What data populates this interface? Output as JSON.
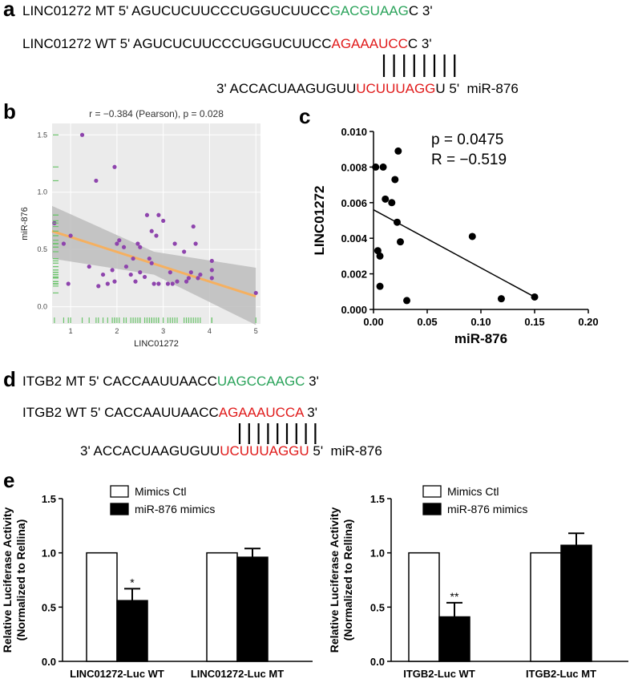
{
  "colors": {
    "green": "#2aa35a",
    "red": "#e01a1a",
    "purple": "#8e44ad",
    "orange": "#f5b060",
    "rug": "#6cc46c",
    "band": "#bdbdbd"
  },
  "panels": {
    "a": {
      "letter": "a",
      "mt": {
        "prefix": "LINC01272 MT 5' AGUCUCUUCCCUGGUCUUCC",
        "site": "GACGUAAG",
        "suffix": "C 3'"
      },
      "wt": {
        "prefix": "LINC01272 WT 5' AGUCUCUUCCCUGGUCUUCC",
        "site": "AGAAAUCC",
        "suffix": "C 3'"
      },
      "mir": {
        "prefix": "3' ACCACUAAGUGUU",
        "site": "UCUUUAGG",
        "suffix": "U 5'  miR-876"
      }
    },
    "b": {
      "letter": "b"
    },
    "c": {
      "letter": "c"
    },
    "d": {
      "letter": "d",
      "mt": {
        "prefix": "ITGB2 MT 5' CACCAAUUAACC",
        "site": "UAGCCAAGC",
        "suffix": " 3'"
      },
      "wt": {
        "prefix": "ITGB2 WT 5' CACCAAUUAACC",
        "site": "AGAAAUCCA",
        "suffix": " 3'"
      },
      "mir": {
        "prefix": "3' ACCACUAAGUGUU",
        "site": "UCUUUAGGU",
        "suffix": " 5'  miR-876"
      }
    },
    "e": {
      "letter": "e"
    }
  },
  "chart_data": [
    {
      "type": "scatter",
      "panel": "b",
      "title": "r = −0.384 (Pearson), p = 0.028",
      "xlabel": "LINC01272",
      "ylabel": "miR-876",
      "xlim": [
        0.6,
        5.1
      ],
      "ylim": [
        -0.15,
        1.6
      ],
      "xticks": [
        "1",
        "2",
        "3",
        "4",
        "5"
      ],
      "yticks": [
        "0.0",
        "0.5",
        "1.0",
        "1.5"
      ],
      "grid": true,
      "background": "#ebebeb",
      "points": [
        [
          1.25,
          1.5
        ],
        [
          1.55,
          1.1
        ],
        [
          1.95,
          1.22
        ],
        [
          0.65,
          0.73
        ],
        [
          0.85,
          0.55
        ],
        [
          1.0,
          0.62
        ],
        [
          0.95,
          0.2
        ],
        [
          1.4,
          0.35
        ],
        [
          1.6,
          0.18
        ],
        [
          1.7,
          0.28
        ],
        [
          1.8,
          0.2
        ],
        [
          1.9,
          0.32
        ],
        [
          1.95,
          0.22
        ],
        [
          2.0,
          0.55
        ],
        [
          2.05,
          0.58
        ],
        [
          2.15,
          0.52
        ],
        [
          2.2,
          0.35
        ],
        [
          2.3,
          0.28
        ],
        [
          2.35,
          0.42
        ],
        [
          2.4,
          0.22
        ],
        [
          2.45,
          0.55
        ],
        [
          2.5,
          0.3
        ],
        [
          2.5,
          0.52
        ],
        [
          2.6,
          0.26
        ],
        [
          2.65,
          0.8
        ],
        [
          2.7,
          0.42
        ],
        [
          2.75,
          0.38
        ],
        [
          2.75,
          0.66
        ],
        [
          2.8,
          0.2
        ],
        [
          2.85,
          0.62
        ],
        [
          2.9,
          0.2
        ],
        [
          2.9,
          0.8
        ],
        [
          3.0,
          0.75
        ],
        [
          3.1,
          0.2
        ],
        [
          3.15,
          0.3
        ],
        [
          3.2,
          0.2
        ],
        [
          3.25,
          0.55
        ],
        [
          3.3,
          0.22
        ],
        [
          3.45,
          0.48
        ],
        [
          3.5,
          0.22
        ],
        [
          3.55,
          0.25
        ],
        [
          3.6,
          0.3
        ],
        [
          3.65,
          0.7
        ],
        [
          3.7,
          0.55
        ],
        [
          3.75,
          0.25
        ],
        [
          3.8,
          0.28
        ],
        [
          4.05,
          0.25
        ],
        [
          4.05,
          0.32
        ],
        [
          4.05,
          0.4
        ],
        [
          5.0,
          0.12
        ]
      ],
      "fit": {
        "x": [
          0.6,
          5.0
        ],
        "y": [
          0.66,
          0.09
        ]
      },
      "band_upper": [
        [
          0.6,
          0.88
        ],
        [
          2.8,
          0.48
        ],
        [
          5.0,
          0.34
        ]
      ],
      "band_lower": [
        [
          0.6,
          0.42
        ],
        [
          2.8,
          0.28
        ],
        [
          5.0,
          -0.16
        ]
      ]
    },
    {
      "type": "scatter",
      "panel": "c",
      "xlabel": "miR-876",
      "ylabel": "LINC01272",
      "xlim": [
        0.0,
        0.2
      ],
      "ylim": [
        0.0,
        0.01
      ],
      "xticks": [
        "0.00",
        "0.05",
        "0.10",
        "0.15",
        "0.20"
      ],
      "yticks": [
        "0.000",
        "0.002",
        "0.004",
        "0.006",
        "0.008",
        "0.010"
      ],
      "annotations": [
        "p = 0.0475",
        "R = −0.519"
      ],
      "points": [
        [
          0.002,
          0.008
        ],
        [
          0.009,
          0.008
        ],
        [
          0.023,
          0.0089
        ],
        [
          0.02,
          0.0073
        ],
        [
          0.011,
          0.0062
        ],
        [
          0.017,
          0.006
        ],
        [
          0.022,
          0.0049
        ],
        [
          0.025,
          0.0038
        ],
        [
          0.004,
          0.0033
        ],
        [
          0.006,
          0.003
        ],
        [
          0.006,
          0.0013
        ],
        [
          0.031,
          0.0005
        ],
        [
          0.092,
          0.0041
        ],
        [
          0.119,
          0.0006
        ],
        [
          0.15,
          0.0007
        ]
      ],
      "fit": {
        "x": [
          0.0,
          0.15
        ],
        "y": [
          0.0056,
          0.0007
        ]
      }
    },
    {
      "type": "bar",
      "panel": "e-left",
      "ylabel": "Relative Luciferase Activity\n(Normalized to Rellina)",
      "categories": [
        "LINC01272-Luc WT",
        "LINC01272-Luc MT"
      ],
      "series": [
        {
          "name": "Mimics Ctl",
          "values": [
            1.0,
            1.0
          ],
          "errors": [
            0,
            0
          ]
        },
        {
          "name": "miR-876 mimics",
          "values": [
            0.56,
            0.96
          ],
          "errors": [
            0.11,
            0.08
          ]
        }
      ],
      "significance": [
        "*",
        ""
      ],
      "ylim": [
        0,
        1.5
      ],
      "yticks": [
        "0.0",
        "0.5",
        "1.0",
        "1.5"
      ]
    },
    {
      "type": "bar",
      "panel": "e-right",
      "ylabel": "Relative Luciferase Activity\n(Normalized to Rellina)",
      "categories": [
        "ITGB2-Luc WT",
        "ITGB2-Luc MT"
      ],
      "series": [
        {
          "name": "Mimics Ctl",
          "values": [
            1.0,
            1.0
          ],
          "errors": [
            0,
            0
          ]
        },
        {
          "name": "miR-876 mimics",
          "values": [
            0.41,
            1.07
          ],
          "errors": [
            0.13,
            0.11
          ]
        }
      ],
      "significance": [
        "**",
        ""
      ],
      "ylim": [
        0,
        1.5
      ],
      "yticks": [
        "0.0",
        "0.5",
        "1.0",
        "1.5"
      ]
    }
  ]
}
